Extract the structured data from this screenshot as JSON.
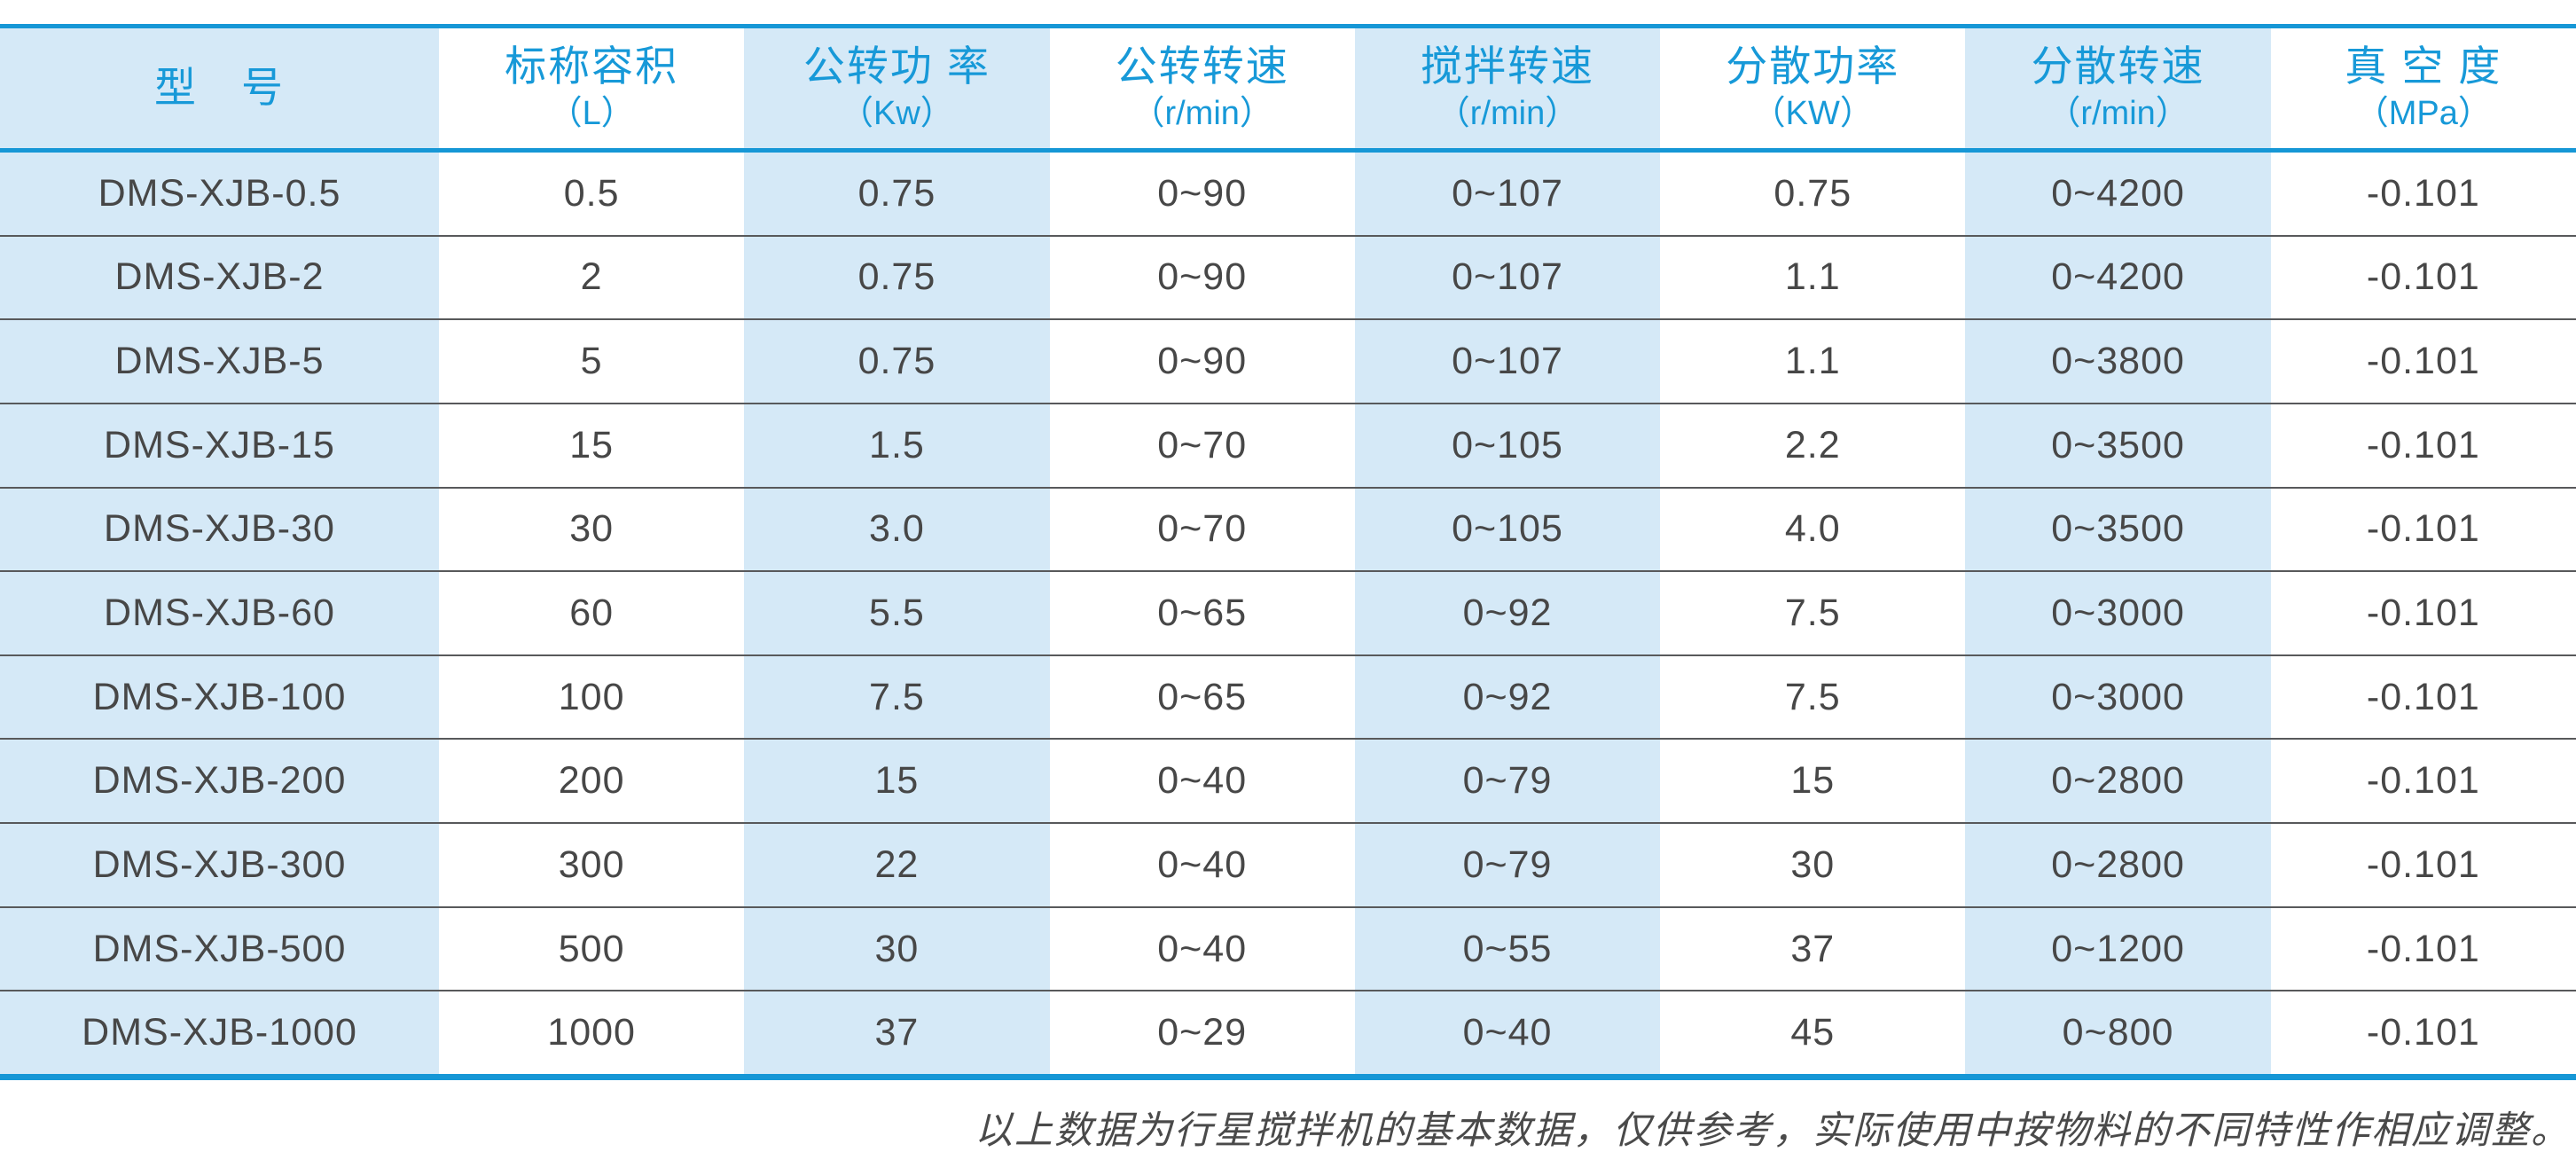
{
  "table": {
    "columns": [
      {
        "label": "型　号",
        "unit": ""
      },
      {
        "label": "标称容积",
        "unit": "（L）"
      },
      {
        "label": "公转功 率",
        "unit": "（Kw）"
      },
      {
        "label": "公转转速",
        "unit": "（r/min）"
      },
      {
        "label": "搅拌转速",
        "unit": "（r/min）"
      },
      {
        "label": "分散功率",
        "unit": "（KW）"
      },
      {
        "label": "分散转速",
        "unit": "（r/min）"
      },
      {
        "label": "真 空 度",
        "unit": "（MPa）"
      }
    ],
    "rows": [
      [
        "DMS-XJB-0.5",
        "0.5",
        "0.75",
        "0~90",
        "0~107",
        "0.75",
        "0~4200",
        "-0.101"
      ],
      [
        "DMS-XJB-2",
        "2",
        "0.75",
        "0~90",
        "0~107",
        "1.1",
        "0~4200",
        "-0.101"
      ],
      [
        "DMS-XJB-5",
        "5",
        "0.75",
        "0~90",
        "0~107",
        "1.1",
        "0~3800",
        "-0.101"
      ],
      [
        "DMS-XJB-15",
        "15",
        "1.5",
        "0~70",
        "0~105",
        "2.2",
        "0~3500",
        "-0.101"
      ],
      [
        "DMS-XJB-30",
        "30",
        "3.0",
        "0~70",
        "0~105",
        "4.0",
        "0~3500",
        "-0.101"
      ],
      [
        "DMS-XJB-60",
        "60",
        "5.5",
        "0~65",
        "0~92",
        "7.5",
        "0~3000",
        "-0.101"
      ],
      [
        "DMS-XJB-100",
        "100",
        "7.5",
        "0~65",
        "0~92",
        "7.5",
        "0~3000",
        "-0.101"
      ],
      [
        "DMS-XJB-200",
        "200",
        "15",
        "0~40",
        "0~79",
        "15",
        "0~2800",
        "-0.101"
      ],
      [
        "DMS-XJB-300",
        "300",
        "22",
        "0~40",
        "0~79",
        "30",
        "0~2800",
        "-0.101"
      ],
      [
        "DMS-XJB-500",
        "500",
        "30",
        "0~40",
        "0~55",
        "37",
        "0~1200",
        "-0.101"
      ],
      [
        "DMS-XJB-1000",
        "1000",
        "37",
        "0~29",
        "0~40",
        "45",
        "0~800",
        "-0.101"
      ]
    ]
  },
  "footnote": "以上数据为行星搅拌机的基本数据，仅供参考，实际使用中按物料的不同特性作相应调整。",
  "colors": {
    "accent_blue": "#1799d8",
    "line_blue": "#1697d6",
    "stripe_light_blue": "#d5e9f7",
    "body_text": "#474747",
    "row_divider": "#58595b"
  }
}
